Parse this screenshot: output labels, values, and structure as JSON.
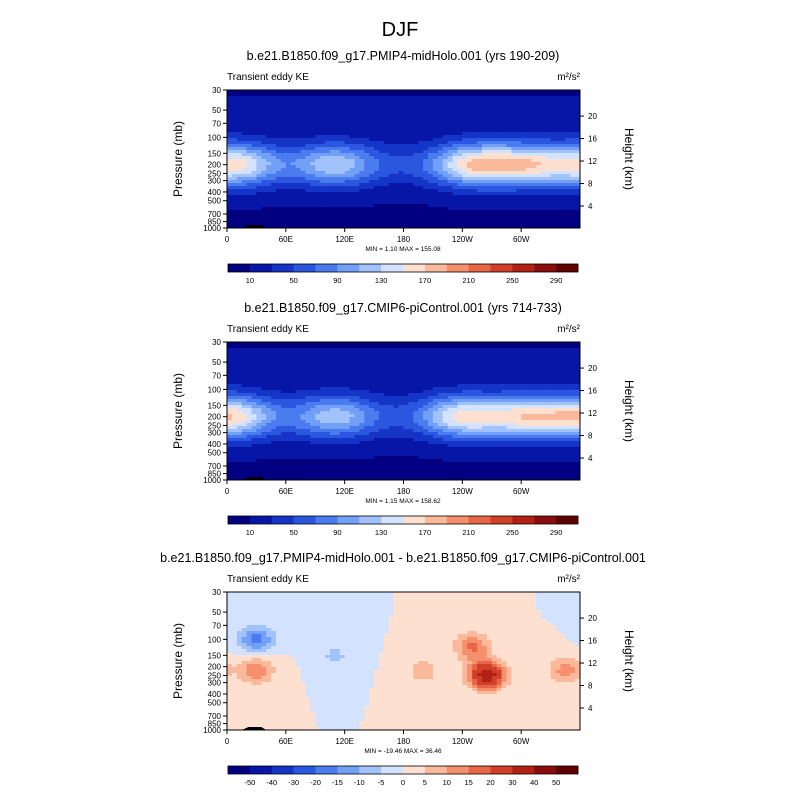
{
  "figure_title": "DJF",
  "colors": {
    "frame": "#000000",
    "text": "#000000",
    "terrain": "#000000"
  },
  "chart_data": [
    {
      "type": "heatmap",
      "title": "b.e21.B1850.f09_g17.PMIP4-midHolo.001 (yrs 190-209)",
      "variable_label": "Transient eddy KE",
      "units_label": "m²/s²",
      "xlabel": "",
      "ylabel": "Pressure (mb)",
      "y2label": "Height (km)",
      "x_ticks": [
        "0",
        "60E",
        "120E",
        "180",
        "120W",
        "60W"
      ],
      "x_tick_values": [
        0,
        60,
        120,
        180,
        240,
        300
      ],
      "xlim": [
        0,
        360
      ],
      "y_ticks": [
        "30",
        "50",
        "70",
        "100",
        "150",
        "200",
        "250",
        "300",
        "400",
        "500",
        "700",
        "850",
        "1000"
      ],
      "y_tick_values": [
        30,
        50,
        70,
        100,
        150,
        200,
        250,
        300,
        400,
        500,
        700,
        850,
        1000
      ],
      "ylim": [
        1000,
        30
      ],
      "y2_ticks": [
        "4",
        "8",
        "12",
        "16",
        "20"
      ],
      "y2_tick_values": [
        4,
        8,
        12,
        16,
        20
      ],
      "stats": "MIN =   1.10  MAX = 155.08",
      "min": 1.1,
      "max": 155.08,
      "colorbar": {
        "labels": [
          "10",
          "50",
          "90",
          "130",
          "170",
          "210",
          "250",
          "290"
        ],
        "levels": [
          10,
          30,
          50,
          70,
          90,
          110,
          130,
          150,
          170,
          190,
          210,
          230,
          250,
          270,
          290
        ],
        "colors": [
          "#020080",
          "#0816a8",
          "#1535c8",
          "#2b57e0",
          "#4a7cf0",
          "#73a0f7",
          "#a2c2fb",
          "#d3e3ff",
          "#fde0cf",
          "#fbb99c",
          "#f58f6d",
          "#e86545",
          "#d23f28",
          "#b22114",
          "#8a0c0c",
          "#600000"
        ]
      },
      "field_model": {
        "jet_level_mb": 200,
        "jet_centers": [
          {
            "lon": 10,
            "amplitude": 145
          },
          {
            "lon": 110,
            "amplitude": 120
          },
          {
            "lon": 250,
            "amplitude": 150
          },
          {
            "lon": 305,
            "amplitude": 140
          }
        ]
      }
    },
    {
      "type": "heatmap",
      "title": "b.e21.B1850.f09_g17.CMIP6-piControl.001 (yrs 714-733)",
      "variable_label": "Transient eddy KE",
      "units_label": "m²/s²",
      "xlabel": "",
      "ylabel": "Pressure (mb)",
      "y2label": "Height (km)",
      "x_ticks": [
        "0",
        "60E",
        "120E",
        "180",
        "120W",
        "60W"
      ],
      "x_tick_values": [
        0,
        60,
        120,
        180,
        240,
        300
      ],
      "xlim": [
        0,
        360
      ],
      "y_ticks": [
        "30",
        "50",
        "70",
        "100",
        "150",
        "200",
        "250",
        "300",
        "400",
        "500",
        "700",
        "850",
        "1000"
      ],
      "y_tick_values": [
        30,
        50,
        70,
        100,
        150,
        200,
        250,
        300,
        400,
        500,
        700,
        850,
        1000
      ],
      "ylim": [
        1000,
        30
      ],
      "y2_ticks": [
        "4",
        "8",
        "12",
        "16",
        "20"
      ],
      "y2_tick_values": [
        4,
        8,
        12,
        16,
        20
      ],
      "stats": "MIN =   1.15  MAX = 158.62",
      "min": 1.15,
      "max": 158.62,
      "colorbar": {
        "labels": [
          "10",
          "50",
          "90",
          "130",
          "170",
          "210",
          "250",
          "290"
        ],
        "levels": [
          10,
          30,
          50,
          70,
          90,
          110,
          130,
          150,
          170,
          190,
          210,
          230,
          250,
          270,
          290
        ],
        "colors": [
          "#020080",
          "#0816a8",
          "#1535c8",
          "#2b57e0",
          "#4a7cf0",
          "#73a0f7",
          "#a2c2fb",
          "#d3e3ff",
          "#fde0cf",
          "#fbb99c",
          "#f58f6d",
          "#e86545",
          "#d23f28",
          "#b22114",
          "#8a0c0c",
          "#600000"
        ]
      },
      "field_model": {
        "jet_level_mb": 200,
        "jet_centers": [
          {
            "lon": 5,
            "amplitude": 150
          },
          {
            "lon": 110,
            "amplitude": 115
          },
          {
            "lon": 240,
            "amplitude": 145
          },
          {
            "lon": 305,
            "amplitude": 140
          }
        ]
      }
    },
    {
      "type": "heatmap",
      "title": "b.e21.B1850.f09_g17.PMIP4-midHolo.001 - b.e21.B1850.f09_g17.CMIP6-piControl.001",
      "variable_label": "Transient eddy KE",
      "units_label": "m²/s²",
      "xlabel": "",
      "ylabel": "Pressure (mb)",
      "y2label": "Height (km)",
      "x_ticks": [
        "0",
        "60E",
        "120E",
        "180",
        "120W",
        "60W"
      ],
      "x_tick_values": [
        0,
        60,
        120,
        180,
        240,
        300
      ],
      "xlim": [
        0,
        360
      ],
      "y_ticks": [
        "30",
        "50",
        "70",
        "100",
        "150",
        "200",
        "250",
        "300",
        "400",
        "500",
        "700",
        "850",
        "1000"
      ],
      "y_tick_values": [
        30,
        50,
        70,
        100,
        150,
        200,
        250,
        300,
        400,
        500,
        700,
        850,
        1000
      ],
      "ylim": [
        1000,
        30
      ],
      "y2_ticks": [
        "4",
        "8",
        "12",
        "16",
        "20"
      ],
      "y2_tick_values": [
        4,
        8,
        12,
        16,
        20
      ],
      "stats": "MIN = -19.46  MAX =  36.46",
      "min": -19.46,
      "max": 36.46,
      "colorbar": {
        "labels": [
          "-50",
          "-40",
          "-30",
          "-20",
          "-15",
          "-10",
          "-5",
          "0",
          "5",
          "10",
          "15",
          "20",
          "30",
          "40",
          "50"
        ],
        "levels": [
          -50,
          -40,
          -30,
          -20,
          -15,
          -10,
          -5,
          0,
          5,
          10,
          15,
          20,
          30,
          40,
          50
        ],
        "colors": [
          "#020080",
          "#0816a8",
          "#1535c8",
          "#2b57e0",
          "#4a7cf0",
          "#73a0f7",
          "#a2c2fb",
          "#d3e3ff",
          "#fde0cf",
          "#fbb99c",
          "#f58f6d",
          "#e86545",
          "#d23f28",
          "#b22114",
          "#8a0c0c",
          "#600000"
        ]
      },
      "field_model": {
        "anomalies": [
          {
            "lon": 30,
            "p_mb": 100,
            "amplitude": -17
          },
          {
            "lon": 30,
            "p_mb": 220,
            "amplitude": 14
          },
          {
            "lon": 250,
            "p_mb": 120,
            "amplitude": 16
          },
          {
            "lon": 265,
            "p_mb": 250,
            "amplitude": 36
          },
          {
            "lon": 200,
            "p_mb": 220,
            "amplitude": 8
          },
          {
            "lon": 345,
            "p_mb": 220,
            "amplitude": 12
          },
          {
            "lon": 110,
            "p_mb": 150,
            "amplitude": -6
          }
        ]
      }
    }
  ]
}
